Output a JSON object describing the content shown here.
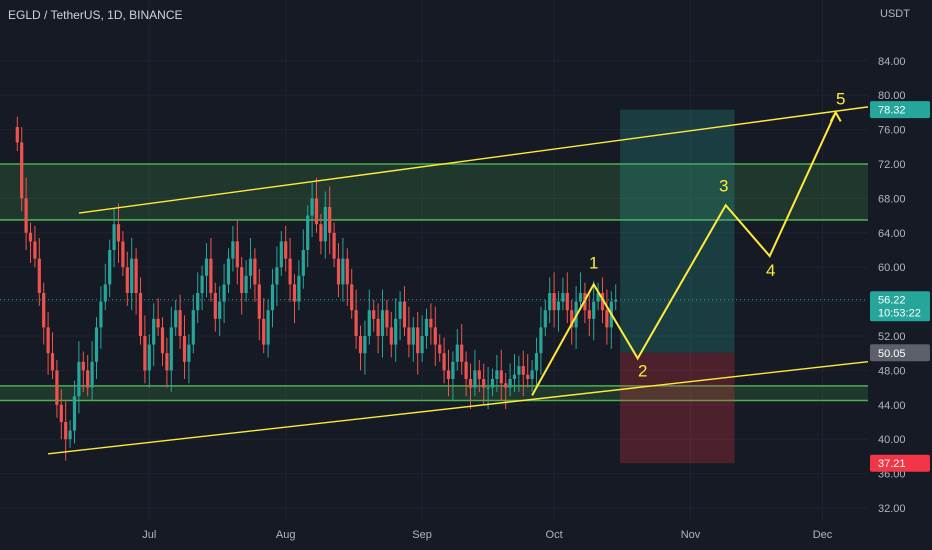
{
  "header": {
    "title": "EGLD / TetherUS, 1D, BINANCE",
    "currency": "USDT"
  },
  "colors": {
    "background": "#161a25",
    "grid": "#1f2330",
    "up": "#26a69a",
    "down": "#ef5350",
    "zone": "#4caf50",
    "trend": "#ffeb3b",
    "target": "#26a69a",
    "stop": "#f23645"
  },
  "chart_data": {
    "type": "candlestick",
    "ylim": [
      30,
      86
    ],
    "y_ticks": [
      32,
      36,
      40,
      44,
      48,
      52,
      56,
      60,
      64,
      68,
      72,
      76,
      80,
      84
    ],
    "y_tick_labels": [
      "32.00",
      "36.00",
      "40.00",
      "44.00",
      "48.00",
      "52.00",
      "56.00",
      "60.00",
      "64.00",
      "68.00",
      "72.00",
      "76.00",
      "80.00",
      "84.00"
    ],
    "x_tick_labels": [
      {
        "label": "Jul",
        "day": 30
      },
      {
        "label": "Aug",
        "day": 61
      },
      {
        "label": "Sep",
        "day": 92
      },
      {
        "label": "Oct",
        "day": 122
      },
      {
        "label": "Nov",
        "day": 153
      },
      {
        "label": "Dec",
        "day": 183
      }
    ],
    "price_labels": [
      {
        "name": "target-price-label",
        "value": 78.32,
        "text": "78.32",
        "color": "#26a69a"
      },
      {
        "name": "last-price-label",
        "value": 56.22,
        "text": "56.22",
        "sub": "10:53:22",
        "color": "#26a69a"
      },
      {
        "name": "entry-price-label",
        "value": 50.05,
        "text": "50.05",
        "color": "#5d606b"
      },
      {
        "name": "stop-price-label",
        "value": 37.21,
        "text": "37.21",
        "color": "#f23645"
      }
    ],
    "zones": [
      {
        "from": 65.5,
        "to": 72.0
      },
      {
        "from": 44.5,
        "to": 46.2
      }
    ],
    "trendlines": [
      {
        "d1": 14,
        "p1": 66.3,
        "d2": 200,
        "p2": 79.1
      },
      {
        "d1": 7,
        "p1": 38.3,
        "d2": 200,
        "p2": 49.4
      }
    ],
    "position": {
      "d1": 137,
      "d2": 163,
      "entry": 50.05,
      "target": 78.32,
      "stop": 37.21
    },
    "waves": [
      {
        "label": "",
        "day": 117,
        "price": 45.1
      },
      {
        "label": "1",
        "day": 131,
        "price": 58.0
      },
      {
        "label": "2",
        "day": 141,
        "price": 49.4
      },
      {
        "label": "3",
        "day": 161,
        "price": 67.2
      },
      {
        "label": "4",
        "day": 171,
        "price": 61.3
      },
      {
        "label": "5",
        "day": 186,
        "price": 78.0
      }
    ],
    "candles": {
      "start_day": 0,
      "close": [
        74.5,
        68,
        64,
        63,
        61,
        57,
        53,
        50,
        48,
        44,
        42,
        40,
        41,
        45,
        49,
        48,
        46,
        49,
        53,
        56,
        58,
        62,
        65,
        63,
        60,
        57,
        61,
        57,
        52,
        48,
        51,
        54,
        53,
        50,
        48,
        53,
        55,
        52,
        49,
        51,
        55,
        57,
        59,
        61,
        57,
        54,
        56,
        58,
        61,
        63,
        60,
        57,
        59,
        61,
        58,
        54,
        51,
        55,
        58,
        60,
        63,
        61,
        58,
        56,
        59,
        62,
        66,
        68,
        65,
        63,
        67,
        64,
        61,
        58,
        61,
        58,
        55,
        52,
        50,
        52,
        55,
        54,
        52,
        55,
        53,
        51,
        54,
        56,
        53,
        51,
        53,
        50,
        52,
        54,
        53,
        51,
        50,
        48,
        47,
        49,
        51,
        49,
        47,
        46,
        48,
        47,
        46,
        46,
        47,
        48,
        46.5,
        46,
        47,
        47.5,
        48.5,
        47.5,
        47,
        48,
        50,
        53,
        55,
        57,
        55,
        56,
        57,
        55,
        53,
        56,
        57,
        55,
        54,
        56,
        57,
        55,
        53,
        56,
        56.2
      ],
      "open_offset": 1.8
    }
  }
}
